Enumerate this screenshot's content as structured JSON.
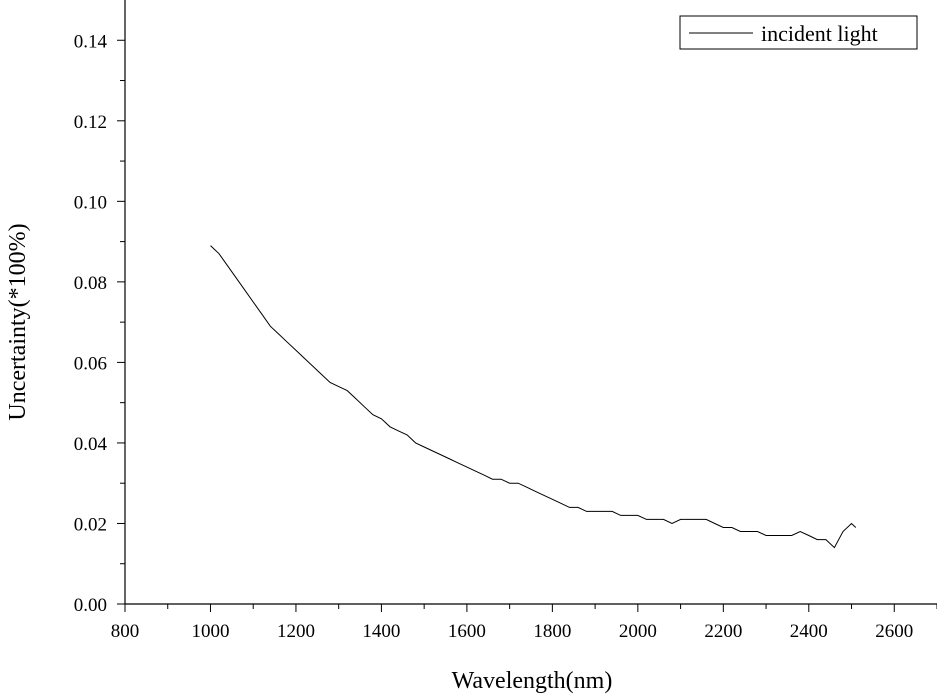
{
  "chart_data": {
    "type": "line",
    "title": "",
    "xlabel": "Wavelength(nm)",
    "ylabel": "Uncertainty(*100%)",
    "xlim": [
      800,
      2700
    ],
    "ylim": [
      0.0,
      0.15
    ],
    "xticks": [
      800,
      1000,
      1200,
      1400,
      1600,
      1800,
      2000,
      2200,
      2400,
      2600
    ],
    "yticks": [
      0.0,
      0.02,
      0.04,
      0.06,
      0.08,
      0.1,
      0.12,
      0.14
    ],
    "xtick_labels": [
      "800",
      "1000",
      "1200",
      "1400",
      "1600",
      "1800",
      "2000",
      "2200",
      "2400",
      "2600"
    ],
    "ytick_labels": [
      "0.00",
      "0.02",
      "0.04",
      "0.06",
      "0.08",
      "0.10",
      "0.12",
      "0.14"
    ],
    "grid": false,
    "legend_position": "top-right",
    "line_color": "#000000",
    "series": [
      {
        "name": "incident light",
        "x": [
          1000,
          1020,
          1040,
          1060,
          1080,
          1100,
          1120,
          1140,
          1160,
          1180,
          1200,
          1220,
          1240,
          1260,
          1280,
          1300,
          1320,
          1340,
          1360,
          1380,
          1400,
          1420,
          1440,
          1460,
          1480,
          1500,
          1520,
          1540,
          1560,
          1580,
          1600,
          1620,
          1640,
          1660,
          1680,
          1700,
          1720,
          1740,
          1760,
          1780,
          1800,
          1820,
          1840,
          1860,
          1880,
          1900,
          1920,
          1940,
          1960,
          1980,
          2000,
          2020,
          2040,
          2060,
          2080,
          2100,
          2120,
          2140,
          2160,
          2180,
          2200,
          2220,
          2240,
          2260,
          2280,
          2300,
          2320,
          2340,
          2360,
          2380,
          2400,
          2420,
          2440,
          2460,
          2480,
          2500,
          2510
        ],
        "y": [
          0.089,
          0.087,
          0.084,
          0.081,
          0.078,
          0.075,
          0.072,
          0.069,
          0.067,
          0.065,
          0.063,
          0.061,
          0.059,
          0.057,
          0.055,
          0.054,
          0.053,
          0.051,
          0.049,
          0.047,
          0.046,
          0.044,
          0.043,
          0.042,
          0.04,
          0.039,
          0.038,
          0.037,
          0.036,
          0.035,
          0.034,
          0.033,
          0.032,
          0.031,
          0.031,
          0.03,
          0.03,
          0.029,
          0.028,
          0.027,
          0.026,
          0.025,
          0.024,
          0.024,
          0.023,
          0.023,
          0.023,
          0.023,
          0.022,
          0.022,
          0.022,
          0.021,
          0.021,
          0.021,
          0.02,
          0.021,
          0.021,
          0.021,
          0.021,
          0.02,
          0.019,
          0.019,
          0.018,
          0.018,
          0.018,
          0.017,
          0.017,
          0.017,
          0.017,
          0.018,
          0.017,
          0.016,
          0.016,
          0.014,
          0.018,
          0.02,
          0.019
        ]
      }
    ]
  }
}
